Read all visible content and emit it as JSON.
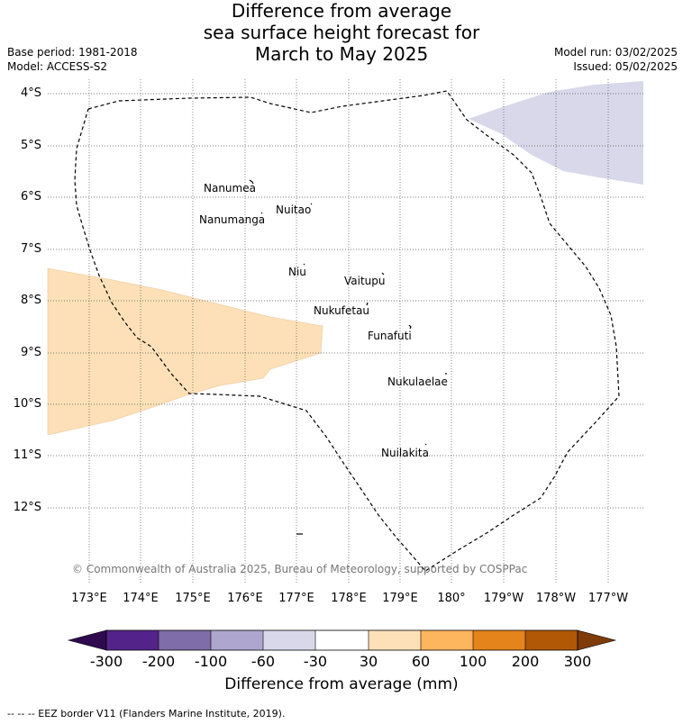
{
  "title": {
    "line1": "Difference from average",
    "line2": "sea surface height forecast for",
    "line3": "March to May 2025"
  },
  "meta": {
    "base_period": "Base period: 1981-2018",
    "model": "Model: ACCESS-S2",
    "model_run": "Model run: 03/02/2025",
    "issued": "Issued: 05/02/2025"
  },
  "map": {
    "latitude_labels": [
      "4°S",
      "5°S",
      "6°S",
      "7°S",
      "8°S",
      "9°S",
      "10°S",
      "11°S",
      "12°S"
    ],
    "longitude_labels": [
      "173°E",
      "174°E",
      "175°E",
      "176°E",
      "177°E",
      "178°E",
      "179°E",
      "180°",
      "179°W",
      "178°W",
      "177°W"
    ],
    "islands": [
      "Nanumea",
      "Nuitao",
      "Nanumanga",
      "Niu",
      "Vaitupu",
      "Nukufetau",
      "Funafuti",
      "Nukulaelae",
      "Nuilakita"
    ],
    "copyright": "© Commonwealth of Australia 2025, Bureau of Meteorology, supported by COSPPac",
    "colors": {
      "anomaly_positive_30_60": "#fde0b7",
      "anomaly_negative_60_30": "#d8d8ea",
      "eez_border": "#000000",
      "gridline": "#555555"
    }
  },
  "legend": {
    "ticks": [
      "-300",
      "-200",
      "-100",
      "-60",
      "-30",
      "30",
      "60",
      "100",
      "200",
      "300"
    ],
    "colors": [
      "#2f0a4f",
      "#54238a",
      "#7e6da8",
      "#aea6cf",
      "#d8d8ea",
      "#ffffff",
      "#fde0b7",
      "#fdb55e",
      "#e4841a",
      "#b15806",
      "#7f3b08"
    ],
    "title": "Difference from average (mm)"
  },
  "footnote": "--  --  -- EEZ border V11 (Flanders Marine Institute, 2019)."
}
